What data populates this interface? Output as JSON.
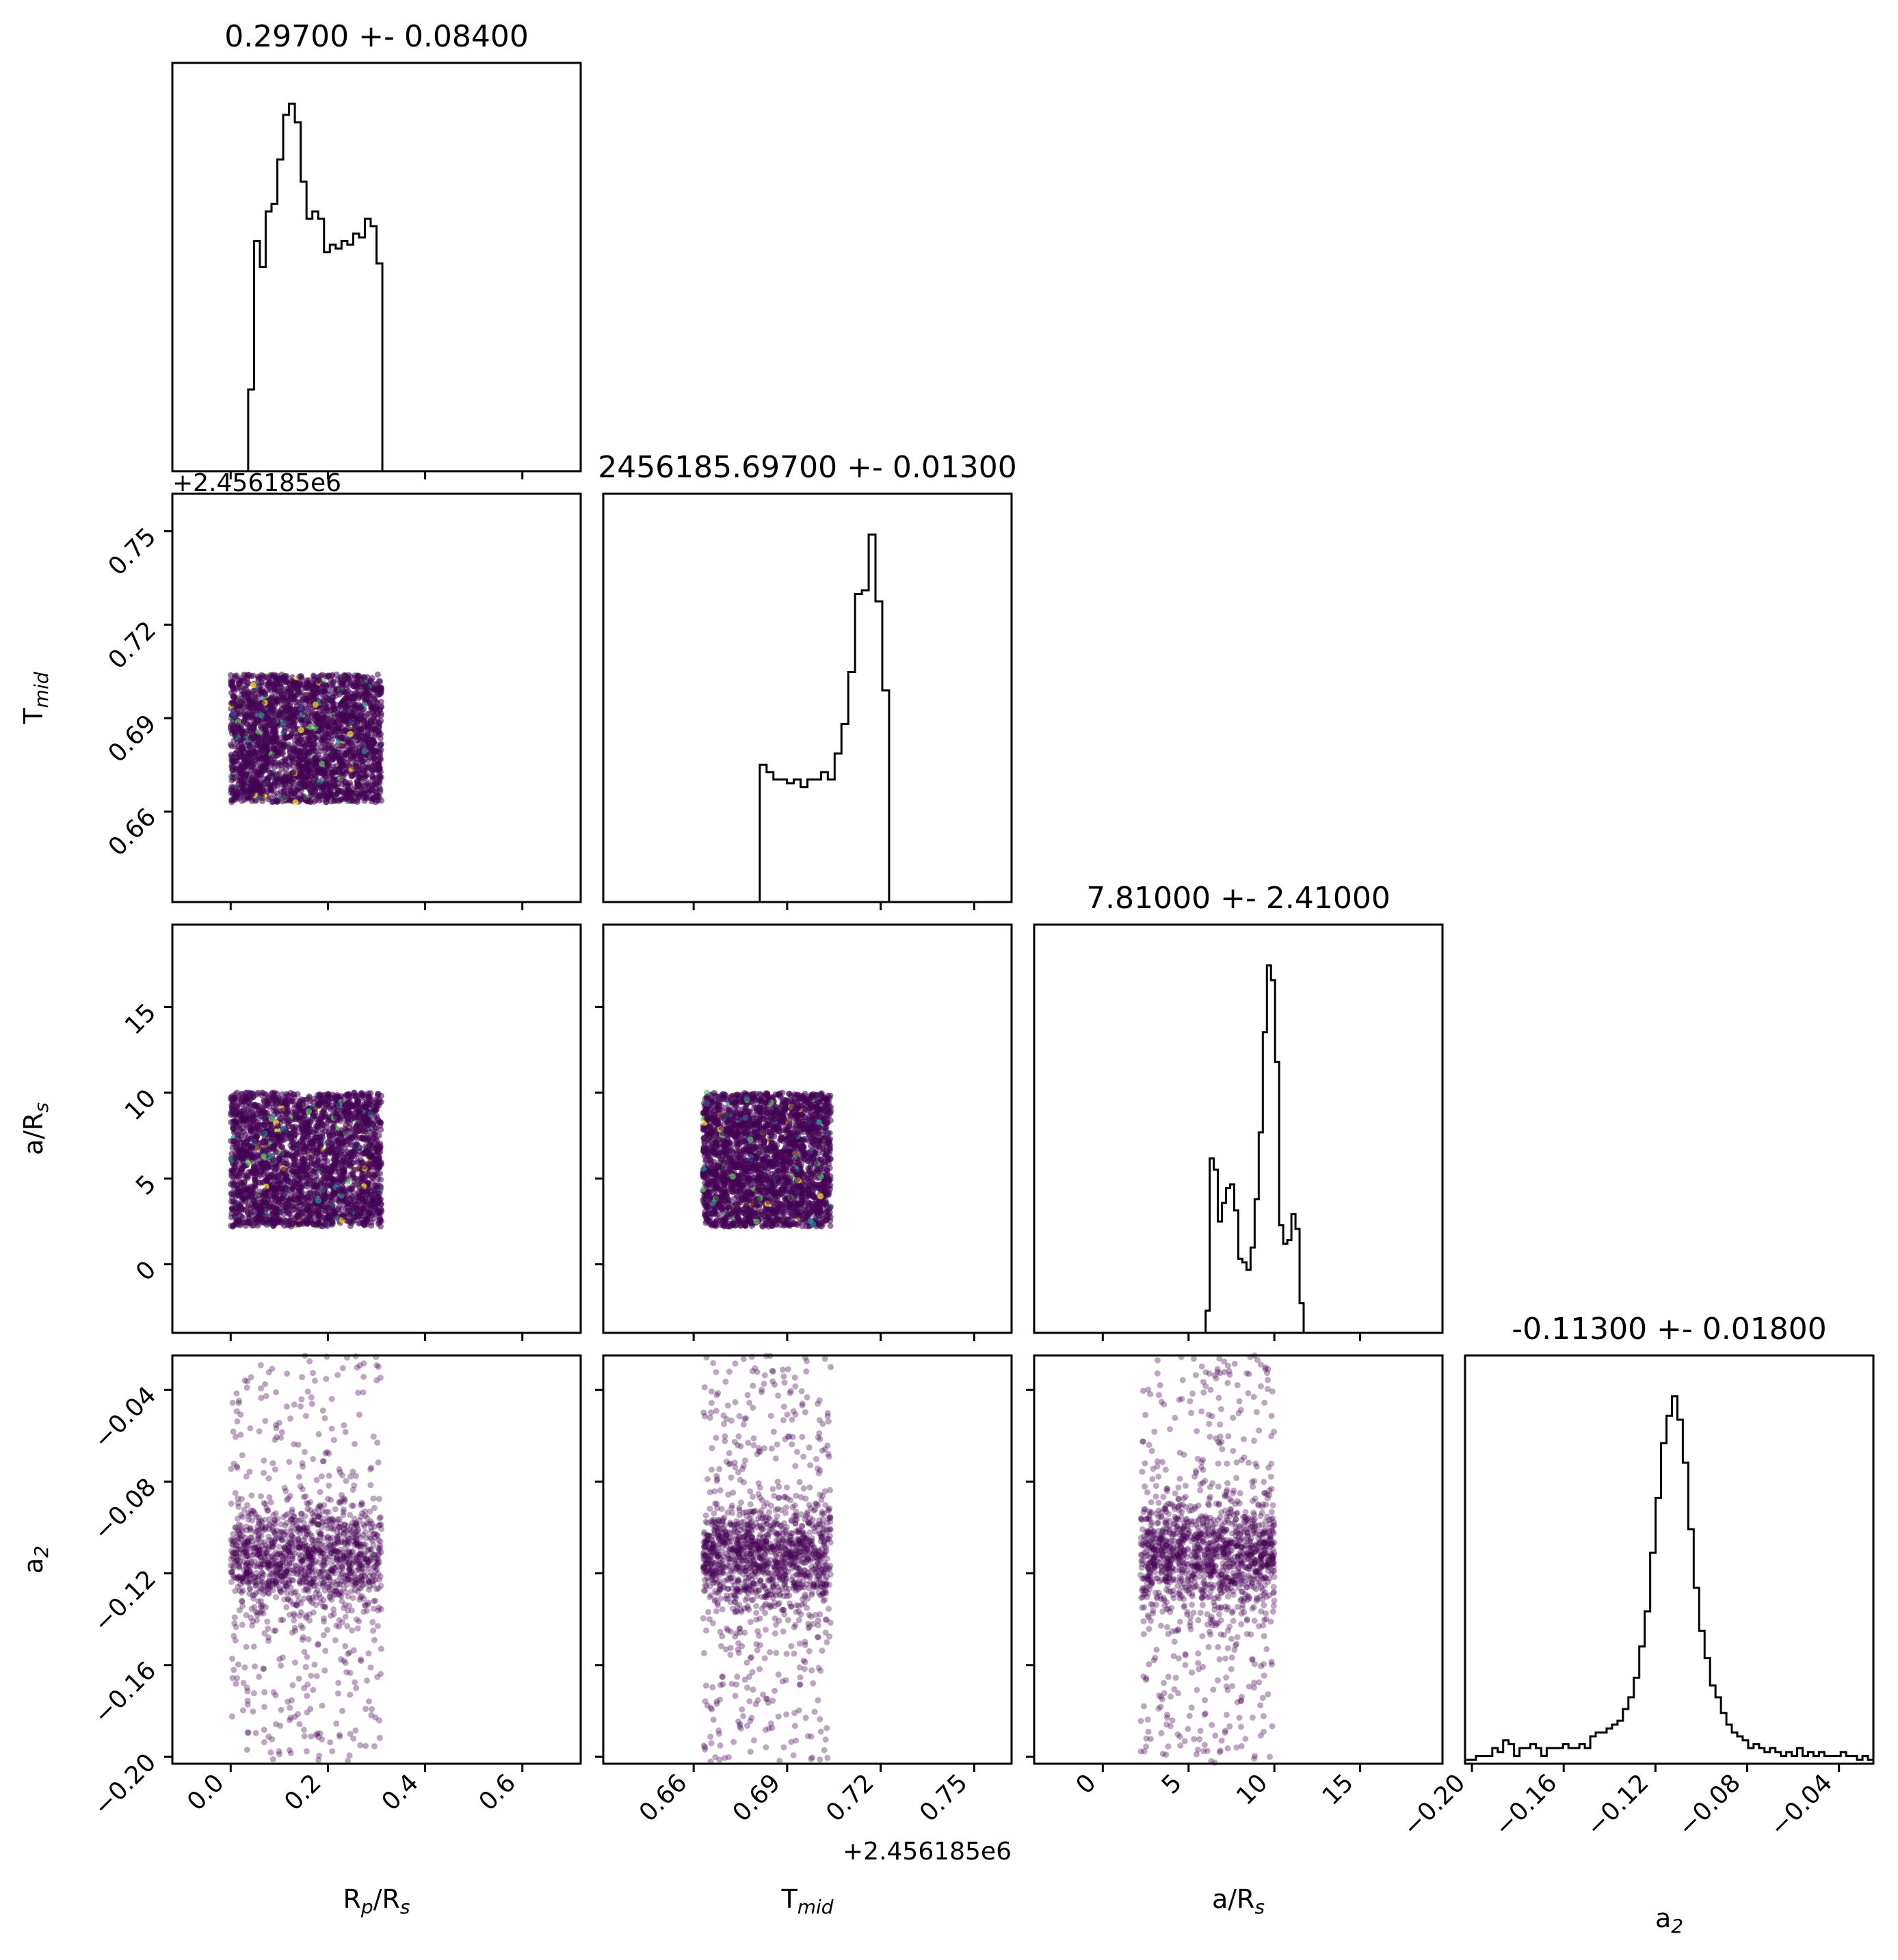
{
  "chart_data": {
    "type": "corner",
    "parameters": [
      {
        "id": "rp",
        "label": "R",
        "sub": "p",
        "label_mid": "/R",
        "sub2": "s",
        "range": [
          -0.12,
          0.72
        ],
        "ticks": [
          0.0,
          0.2,
          0.4,
          0.6
        ],
        "tick_labels": [
          "0.0",
          "0.2",
          "0.4",
          "0.6"
        ],
        "title": "0.29700 +- 0.08400",
        "offset": ""
      },
      {
        "id": "tmid",
        "label": "T",
        "sub": "mid",
        "label_mid": "",
        "sub2": "",
        "range": [
          0.631,
          0.762
        ],
        "ticks": [
          0.66,
          0.69,
          0.72,
          0.75
        ],
        "tick_labels": [
          "0.66",
          "0.69",
          "0.72",
          "0.75"
        ],
        "title": "2456185.69700 +- 0.01300",
        "offset": "+2.456185e6"
      },
      {
        "id": "ars",
        "label": "a/R",
        "sub": "s",
        "label_mid": "",
        "sub2": "",
        "range": [
          -4.0,
          19.8
        ],
        "ticks": [
          0,
          5,
          10,
          15
        ],
        "tick_labels": [
          "0",
          "5",
          "10",
          "15"
        ],
        "title": "7.81000 +- 2.41000",
        "offset": ""
      },
      {
        "id": "a2",
        "label": "a",
        "sub": "2",
        "label_mid": "",
        "sub2": "",
        "range": [
          -0.203,
          -0.025
        ],
        "ticks": [
          -0.2,
          -0.16,
          -0.12,
          -0.08,
          -0.04
        ],
        "tick_labels": [
          "−0.20",
          "−0.16",
          "−0.12",
          "−0.08",
          "−0.04"
        ],
        "title": "-0.11300 +- 0.01800",
        "offset": ""
      }
    ],
    "histograms": [
      {
        "param": "rp",
        "edges_range": [
          -0.12,
          0.72
        ],
        "counts": [
          0,
          0,
          0,
          0,
          0,
          0,
          0,
          0,
          0,
          0,
          0,
          0,
          0,
          22,
          62,
          55,
          70,
          72,
          84,
          96,
          99,
          94,
          78,
          68,
          70,
          68,
          59,
          61,
          60,
          62,
          61,
          64,
          63,
          68,
          66,
          56,
          0,
          0,
          0,
          0,
          0,
          0,
          0,
          0,
          0,
          0,
          0,
          0,
          0,
          0,
          0,
          0,
          0,
          0,
          0,
          0,
          0,
          0,
          0,
          0,
          0,
          0,
          0,
          0,
          0,
          0,
          0,
          0,
          0,
          0
        ]
      },
      {
        "param": "tmid",
        "edges_range": [
          0.631,
          0.762
        ],
        "counts": [
          0,
          0,
          0,
          0,
          0,
          0,
          0,
          0,
          0,
          0,
          0,
          0,
          0,
          0,
          0,
          0,
          0,
          0,
          0,
          0,
          0,
          0,
          0,
          37,
          35,
          33,
          33,
          32,
          33,
          31,
          33,
          33,
          35,
          33,
          40,
          48,
          62,
          83,
          84,
          99,
          81,
          57,
          0,
          0,
          0,
          0,
          0,
          0,
          0,
          0,
          0,
          0,
          0,
          0,
          0,
          0,
          0,
          0,
          0,
          0
        ]
      },
      {
        "param": "ars",
        "edges_range": [
          -4.0,
          19.8
        ],
        "counts": [
          0,
          0,
          0,
          0,
          0,
          0,
          0,
          0,
          0,
          0,
          0,
          0,
          0,
          0,
          0,
          0,
          0,
          0,
          0,
          0,
          0,
          0,
          0,
          0,
          0,
          0,
          0,
          0,
          0,
          0,
          0,
          0,
          0,
          0,
          0,
          0,
          0,
          0,
          0,
          0,
          0,
          0,
          6,
          47,
          44,
          30,
          35,
          39,
          40,
          33,
          20,
          19,
          17,
          23,
          36,
          54,
          81,
          99,
          95,
          73,
          29,
          24,
          25,
          32,
          28,
          8,
          0,
          0,
          0,
          0,
          0,
          0,
          0,
          0,
          0,
          0,
          0,
          0,
          0,
          0,
          0,
          0,
          0,
          0,
          0,
          0,
          0,
          0,
          0,
          0,
          0,
          0,
          0,
          0,
          0,
          0,
          0,
          0,
          0,
          0
        ]
      },
      {
        "param": "a2",
        "edges_range": [
          -0.203,
          -0.025
        ],
        "counts": [
          1,
          1,
          2,
          2,
          2,
          4,
          3,
          6,
          5,
          2,
          4,
          4,
          5,
          4,
          2,
          4,
          4,
          4,
          5,
          4,
          4,
          5,
          4,
          7,
          8,
          8,
          9,
          10,
          11,
          14,
          17,
          22,
          30,
          39,
          54,
          68,
          82,
          89,
          94,
          88,
          77,
          60,
          45,
          34,
          27,
          20,
          17,
          13,
          10,
          8,
          7,
          6,
          4,
          5,
          4,
          3,
          4,
          3,
          2,
          3,
          2,
          4,
          2,
          3,
          2,
          3,
          2,
          2,
          2,
          3,
          2,
          2,
          1,
          2,
          1
        ]
      }
    ],
    "scatter_panels": [
      {
        "row": "tmid",
        "col": "rp"
      },
      {
        "row": "ars",
        "col": "rp"
      },
      {
        "row": "ars",
        "col": "tmid"
      },
      {
        "row": "a2",
        "col": "rp"
      },
      {
        "row": "a2",
        "col": "tmid"
      },
      {
        "row": "a2",
        "col": "ars"
      }
    ],
    "posterior_box": {
      "rp": [
        0.0,
        0.31
      ],
      "tmid": [
        0.663,
        0.704
      ],
      "ars": [
        2.2,
        10.0
      ],
      "a2": [
        -0.203,
        -0.025
      ]
    },
    "scatter_colors": {
      "base": "#440154",
      "hot": [
        "#3b528b",
        "#21918c",
        "#5ec962",
        "#fde725"
      ]
    },
    "grid": false,
    "legend": "none"
  }
}
